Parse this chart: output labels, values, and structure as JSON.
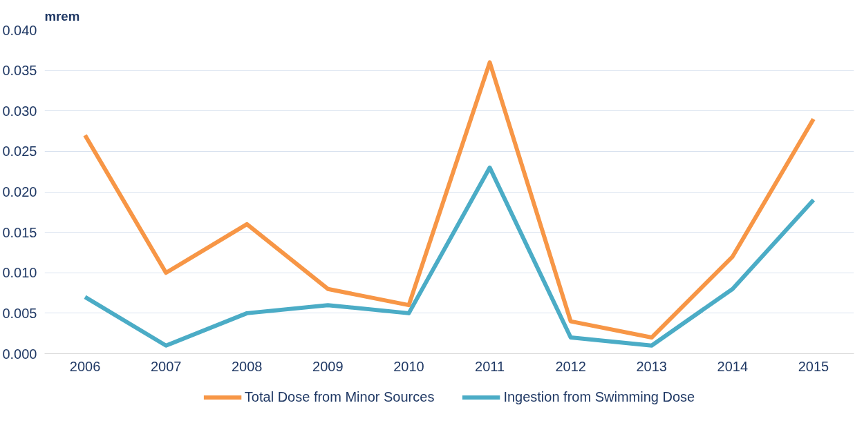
{
  "chart_data": {
    "type": "line",
    "ylabel": "mrem",
    "categories": [
      "2006",
      "2007",
      "2008",
      "2009",
      "2010",
      "2011",
      "2012",
      "2013",
      "2014",
      "2015"
    ],
    "series": [
      {
        "name": "Total Dose from Minor Sources",
        "color": "#f79646",
        "values": [
          0.027,
          0.01,
          0.016,
          0.008,
          0.006,
          0.036,
          0.004,
          0.002,
          0.012,
          0.029
        ]
      },
      {
        "name": "Ingestion from Swimming Dose",
        "color": "#4bacc6",
        "values": [
          0.007,
          0.001,
          0.005,
          0.006,
          0.005,
          0.023,
          0.002,
          0.001,
          0.008,
          0.019
        ]
      }
    ],
    "ylim": [
      0,
      0.04
    ],
    "yticks": [
      {
        "value": 0,
        "label": "0.000"
      },
      {
        "value": 0.005,
        "label": "0.005"
      },
      {
        "value": 0.01,
        "label": "0.010"
      },
      {
        "value": 0.015,
        "label": "0.015"
      },
      {
        "value": 0.02,
        "label": "0.020"
      },
      {
        "value": 0.025,
        "label": "0.025"
      },
      {
        "value": 0.03,
        "label": "0.030"
      },
      {
        "value": 0.035,
        "label": "0.035"
      },
      {
        "value": 0.04,
        "label": "0.040"
      }
    ],
    "grid": "y",
    "legend": "bottom",
    "marker": "none",
    "line_style": "solid"
  }
}
